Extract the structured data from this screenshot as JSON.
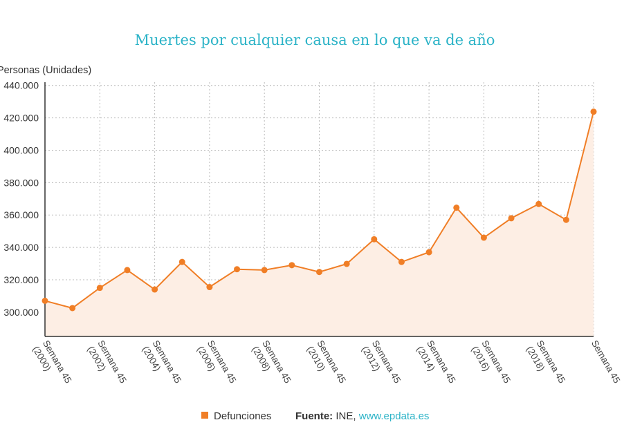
{
  "chart_data": {
    "type": "area",
    "title": "Muertes por cualquier causa en lo que va de año",
    "ylabel": "Personas (Unidades)",
    "xlabel": "",
    "ylim": [
      285000,
      442000
    ],
    "yticks": [
      300000,
      320000,
      340000,
      360000,
      380000,
      400000,
      420000,
      440000
    ],
    "ytick_labels": [
      "300.000",
      "320.000",
      "340.000",
      "360.000",
      "380.000",
      "400.000",
      "420.000",
      "440.000"
    ],
    "x": [
      2000,
      2001,
      2002,
      2003,
      2004,
      2005,
      2006,
      2007,
      2008,
      2009,
      2010,
      2011,
      2012,
      2013,
      2014,
      2015,
      2016,
      2017,
      2018,
      2019,
      2020
    ],
    "x_tick_labels": [
      [
        "Semana 45",
        "(2000)"
      ],
      [
        "Semana 45",
        "(2002)"
      ],
      [
        "Semana 45",
        "(2004)"
      ],
      [
        "Semana 45",
        "(2006)"
      ],
      [
        "Semana 45",
        "(2008)"
      ],
      [
        "Semana 45",
        "(2010)"
      ],
      [
        "Semana 45",
        "(2012)"
      ],
      [
        "Semana 45",
        "(2014)"
      ],
      [
        "Semana 45",
        "(2016)"
      ],
      [
        "Semana 45",
        "(2018)"
      ],
      [
        "Semana 45",
        ""
      ]
    ],
    "series": [
      {
        "name": "Defunciones",
        "color": "#f07e26",
        "fill": "#fdeee4",
        "values": [
          307000,
          302500,
          315000,
          326000,
          314000,
          331000,
          315500,
          326500,
          326000,
          329000,
          324800,
          329800,
          345000,
          331000,
          337000,
          364500,
          346000,
          358000,
          366800,
          357000,
          423800
        ]
      }
    ]
  },
  "legend": {
    "label": "Defunciones",
    "color": "#f07e26"
  },
  "footer": {
    "source_label": "Fuente:",
    "source_value": "INE,",
    "link_text": "www.epdata.es"
  }
}
